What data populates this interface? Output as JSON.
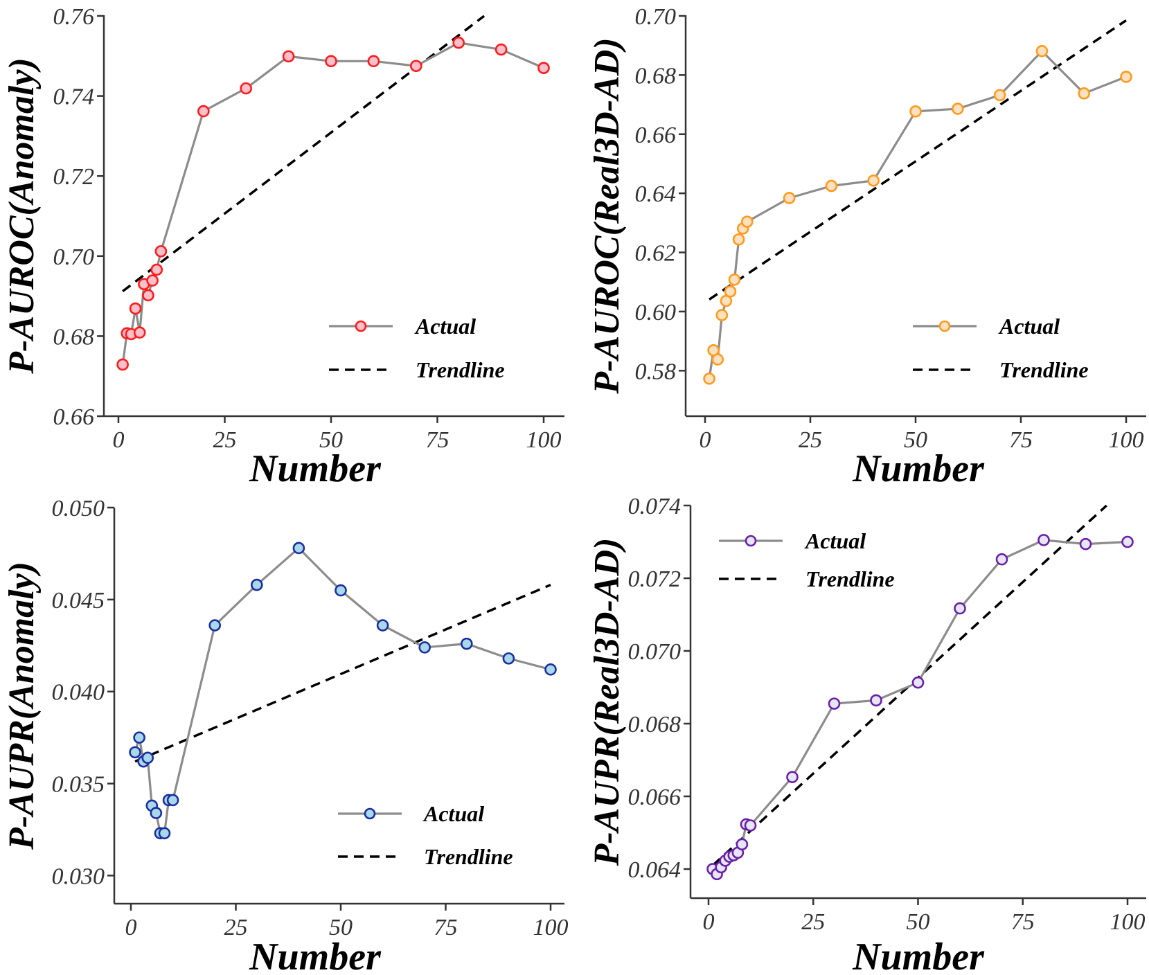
{
  "chart_data": [
    {
      "id": "tl",
      "type": "line",
      "xlabel": "Number",
      "ylabel": "P-AUROC(Anomaly)",
      "xlim": [
        0,
        100
      ],
      "ylim": [
        0.66,
        0.76
      ],
      "xticks": [
        0,
        25,
        50,
        75,
        100
      ],
      "xtick_labels": [
        "0",
        "25",
        "50",
        "75",
        "100"
      ],
      "yticks": [
        0.66,
        0.68,
        0.7,
        0.72,
        0.74,
        0.76
      ],
      "ytick_labels": [
        "0.66",
        "0.68",
        "0.70",
        "0.72",
        "0.74",
        "0.76"
      ],
      "grid": false,
      "legend_position": "lower-right",
      "colors": {
        "marker_edge": "#ff1a1a",
        "marker_fill": "#ffc0cb",
        "line": "#8c8c8c",
        "trend": "#000000"
      },
      "series": [
        {
          "name": "Actual",
          "x": [
            1,
            2,
            3,
            4,
            5,
            6,
            7,
            8,
            9,
            10,
            20,
            30,
            40,
            50,
            60,
            70,
            80,
            90,
            100
          ],
          "y": [
            0.6729,
            0.6807,
            0.6805,
            0.6869,
            0.6809,
            0.693,
            0.6902,
            0.6939,
            0.6966,
            0.7012,
            0.7362,
            0.7419,
            0.7499,
            0.7487,
            0.7487,
            0.7475,
            0.7533,
            0.7516,
            0.747
          ]
        },
        {
          "name": "Trendline",
          "x": [
            1,
            86
          ],
          "y": [
            0.6912,
            0.76
          ]
        }
      ],
      "legend": [
        "Actual",
        "Trendline"
      ]
    },
    {
      "id": "tr",
      "type": "line",
      "xlabel": "Number",
      "ylabel": "P-AUROC(Real3D-AD)",
      "xlim": [
        0,
        100
      ],
      "ylim": [
        0.57,
        0.7
      ],
      "xticks": [
        0,
        25,
        50,
        75,
        100
      ],
      "xtick_labels": [
        "0",
        "25",
        "50",
        "75",
        "100"
      ],
      "yticks": [
        0.58,
        0.6,
        0.62,
        0.64,
        0.66,
        0.68,
        0.7
      ],
      "ytick_labels": [
        "0.58",
        "0.60",
        "0.62",
        "0.64",
        "0.66",
        "0.68",
        "0.70"
      ],
      "grid": false,
      "legend_position": "lower-right",
      "colors": {
        "marker_edge": "#ff9a1a",
        "marker_fill": "#ffe0c0",
        "line": "#8c8c8c",
        "trend": "#000000"
      },
      "series": [
        {
          "name": "Actual",
          "x": [
            1,
            2,
            3,
            4,
            5,
            6,
            7,
            8,
            9,
            10,
            20,
            30,
            40,
            50,
            60,
            70,
            80,
            90,
            100
          ],
          "y": [
            0.5773,
            0.5869,
            0.5838,
            0.5988,
            0.6036,
            0.6068,
            0.6108,
            0.6244,
            0.6281,
            0.6304,
            0.6384,
            0.6425,
            0.6443,
            0.6677,
            0.6686,
            0.6732,
            0.6881,
            0.6738,
            0.6794
          ]
        },
        {
          "name": "Trendline",
          "x": [
            1,
            100
          ],
          "y": [
            0.6041,
            0.6985
          ]
        }
      ],
      "legend": [
        "Actual",
        "Trendline"
      ]
    },
    {
      "id": "bl",
      "type": "line",
      "xlabel": "Number",
      "ylabel": "P-AUPR(Anomaly)",
      "xlim": [
        0,
        100
      ],
      "ylim": [
        0.0293,
        0.05
      ],
      "xticks": [
        0,
        25,
        50,
        75,
        100
      ],
      "xtick_labels": [
        "0",
        "25",
        "50",
        "75",
        "100"
      ],
      "yticks": [
        0.03,
        0.035,
        0.04,
        0.045,
        0.05
      ],
      "ytick_labels": [
        "0.030",
        "0.035",
        "0.040",
        "0.045",
        "0.050"
      ],
      "grid": false,
      "legend_position": "lower-right",
      "colors": {
        "marker_edge": "#1a2ea0",
        "marker_fill": "#a8d8ea",
        "line": "#8c8c8c",
        "trend": "#000000"
      },
      "series": [
        {
          "name": "Actual",
          "x": [
            1,
            2,
            3,
            4,
            5,
            6,
            7,
            8,
            9,
            10,
            20,
            30,
            40,
            50,
            60,
            70,
            80,
            90,
            100
          ],
          "y": [
            0.0367,
            0.0375,
            0.0362,
            0.0364,
            0.0338,
            0.0334,
            0.0323,
            0.0323,
            0.0341,
            0.0341,
            0.0436,
            0.0458,
            0.0478,
            0.0455,
            0.0436,
            0.0424,
            0.0426,
            0.0418,
            0.0412
          ]
        },
        {
          "name": "Trendline",
          "x": [
            1,
            100
          ],
          "y": [
            0.0362,
            0.0458
          ]
        }
      ],
      "legend": [
        "Actual",
        "Trendline"
      ]
    },
    {
      "id": "br",
      "type": "line",
      "xlabel": "Number",
      "ylabel": "P-AUPR(Real3D-AD)",
      "xlim": [
        0,
        100
      ],
      "ylim": [
        0.0632,
        0.074
      ],
      "xticks": [
        0,
        25,
        50,
        75,
        100
      ],
      "xtick_labels": [
        "0",
        "25",
        "50",
        "75",
        "100"
      ],
      "yticks": [
        0.064,
        0.066,
        0.068,
        0.07,
        0.072,
        0.074
      ],
      "ytick_labels": [
        "0.064",
        "0.066",
        "0.068",
        "0.070",
        "0.072",
        "0.074"
      ],
      "grid": false,
      "legend_position": "upper-left",
      "colors": {
        "marker_edge": "#6a1fa8",
        "marker_fill": "#e6e6fa",
        "line": "#8c8c8c",
        "trend": "#000000"
      },
      "series": [
        {
          "name": "Actual",
          "x": [
            1,
            2,
            3,
            4,
            5,
            6,
            7,
            8,
            9,
            10,
            20,
            30,
            40,
            50,
            60,
            70,
            80,
            90,
            100
          ],
          "y": [
            0.064,
            0.06386,
            0.06405,
            0.06423,
            0.06434,
            0.06438,
            0.06445,
            0.06468,
            0.06523,
            0.0652,
            0.06653,
            0.06855,
            0.06864,
            0.06913,
            0.07117,
            0.07252,
            0.07305,
            0.07294,
            0.073
          ]
        },
        {
          "name": "Trendline",
          "x": [
            1,
            95
          ],
          "y": [
            0.0641,
            0.074
          ]
        }
      ],
      "legend": [
        "Actual",
        "Trendline"
      ]
    }
  ]
}
